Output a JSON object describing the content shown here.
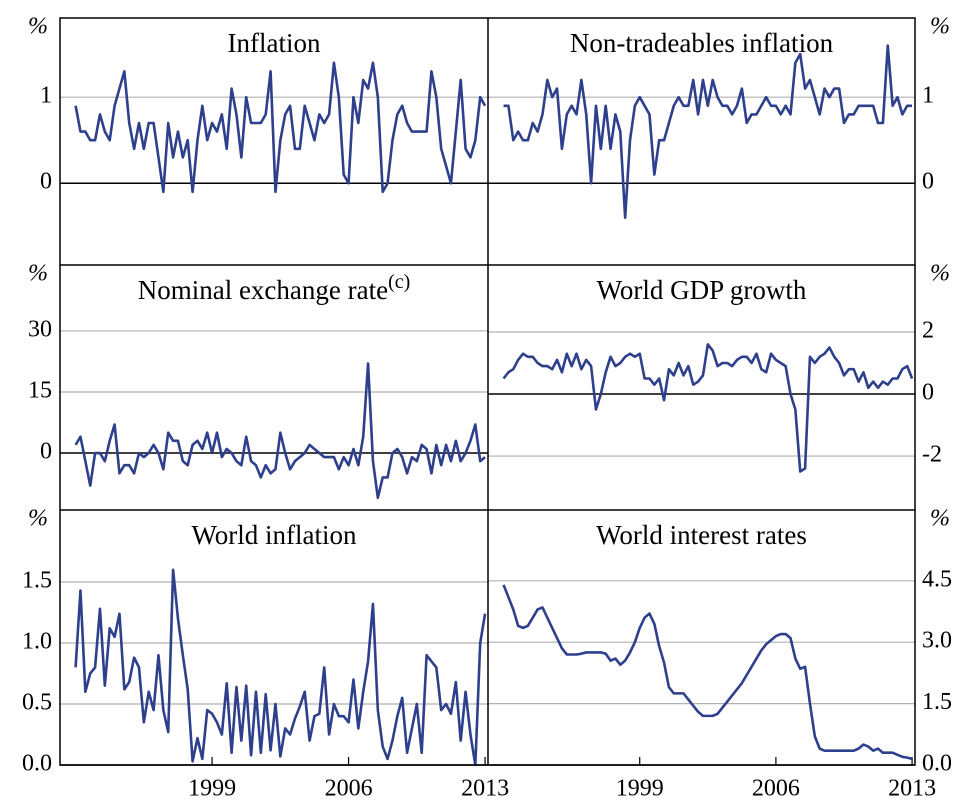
{
  "chart_data": [
    {
      "type": "line",
      "title": "Inflation",
      "ylabel": "%",
      "color": "#2e3f8c",
      "grid": true,
      "x": [
        1992,
        1992.25,
        1992.5,
        1992.75,
        1993,
        1993.25,
        1993.5,
        1993.75,
        1994,
        1994.25,
        1994.5,
        1994.75,
        1995,
        1995.25,
        1995.5,
        1995.75,
        1996,
        1996.25,
        1996.5,
        1996.75,
        1997,
        1997.25,
        1997.5,
        1997.75,
        1998,
        1998.25,
        1998.5,
        1998.75,
        1999,
        1999.25,
        1999.5,
        1999.75,
        2000,
        2000.25,
        2000.5,
        2000.75,
        2001,
        2001.25,
        2001.5,
        2001.75,
        2002,
        2002.25,
        2002.5,
        2002.75,
        2003,
        2003.25,
        2003.5,
        2003.75,
        2004,
        2004.25,
        2004.5,
        2004.75,
        2005,
        2005.25,
        2005.5,
        2005.75,
        2006,
        2006.25,
        2006.5,
        2006.75,
        2007,
        2007.25,
        2007.5,
        2007.75,
        2008,
        2008.25,
        2008.5,
        2008.75,
        2009,
        2009.25,
        2009.5,
        2009.75,
        2010,
        2010.25,
        2010.5,
        2010.75,
        2011,
        2011.25,
        2011.5,
        2011.75,
        2012,
        2012.25,
        2012.5,
        2012.75,
        2013
      ],
      "values": [
        0.9,
        0.6,
        0.6,
        0.5,
        0.5,
        0.8,
        0.6,
        0.5,
        0.9,
        1.1,
        1.3,
        0.7,
        0.4,
        0.7,
        0.4,
        0.7,
        0.7,
        0.3,
        -0.1,
        0.7,
        0.3,
        0.6,
        0.3,
        0.5,
        -0.1,
        0.5,
        0.9,
        0.5,
        0.7,
        0.6,
        0.8,
        0.4,
        1.1,
        0.8,
        0.3,
        1.0,
        0.7,
        0.7,
        0.7,
        0.8,
        1.3,
        -0.1,
        0.5,
        0.8,
        0.9,
        0.4,
        0.4,
        0.9,
        0.7,
        0.5,
        0.8,
        0.7,
        0.8,
        1.4,
        1.0,
        0.1,
        0.0,
        1.0,
        0.7,
        1.2,
        1.1,
        1.4,
        1.0,
        -0.1,
        0.0,
        0.5,
        0.8,
        0.9,
        0.7,
        0.6,
        0.6,
        0.6,
        0.6,
        1.3,
        1.0,
        0.4,
        0.2,
        0.0,
        0.6,
        1.2,
        0.4,
        0.3,
        0.5,
        1.0,
        0.9
      ],
      "xlim": [
        1991.2,
        2013.15
      ],
      "ylim": [
        -0.95,
        1.92
      ],
      "yticks": [
        0,
        1
      ]
    },
    {
      "type": "line",
      "title": "Non-tradeables inflation",
      "ylabel": "%",
      "color": "#2e3f8c",
      "grid": true,
      "x": [
        1992,
        1992.25,
        1992.5,
        1992.75,
        1993,
        1993.25,
        1993.5,
        1993.75,
        1994,
        1994.25,
        1994.5,
        1994.75,
        1995,
        1995.25,
        1995.5,
        1995.75,
        1996,
        1996.25,
        1996.5,
        1996.75,
        1997,
        1997.25,
        1997.5,
        1997.75,
        1998,
        1998.25,
        1998.5,
        1998.75,
        1999,
        1999.25,
        1999.5,
        1999.75,
        2000,
        2000.25,
        2000.5,
        2000.75,
        2001,
        2001.25,
        2001.5,
        2001.75,
        2002,
        2002.25,
        2002.5,
        2002.75,
        2003,
        2003.25,
        2003.5,
        2003.75,
        2004,
        2004.25,
        2004.5,
        2004.75,
        2005,
        2005.25,
        2005.5,
        2005.75,
        2006,
        2006.25,
        2006.5,
        2006.75,
        2007,
        2007.25,
        2007.5,
        2007.75,
        2008,
        2008.25,
        2008.5,
        2008.75,
        2009,
        2009.25,
        2009.5,
        2009.75,
        2010,
        2010.25,
        2010.5,
        2010.75,
        2011,
        2011.25,
        2011.5,
        2011.75,
        2012,
        2012.25,
        2012.5,
        2012.75,
        2013
      ],
      "values": [
        0.9,
        0.9,
        0.5,
        0.6,
        0.5,
        0.5,
        0.7,
        0.6,
        0.8,
        1.2,
        1.0,
        1.1,
        0.4,
        0.8,
        0.9,
        0.8,
        1.2,
        0.8,
        0.0,
        0.9,
        0.4,
        0.9,
        0.4,
        0.8,
        0.6,
        -0.4,
        0.5,
        0.9,
        1.0,
        0.9,
        0.8,
        0.1,
        0.5,
        0.5,
        0.7,
        0.9,
        1.0,
        0.9,
        0.9,
        1.2,
        0.8,
        1.2,
        0.9,
        1.2,
        1.0,
        0.9,
        0.9,
        0.8,
        0.9,
        1.1,
        0.7,
        0.8,
        0.8,
        0.9,
        1.0,
        0.9,
        0.9,
        0.8,
        0.9,
        0.8,
        1.4,
        1.5,
        1.1,
        1.2,
        1.0,
        0.8,
        1.1,
        1.0,
        1.1,
        1.1,
        0.7,
        0.8,
        0.8,
        0.9,
        0.9,
        0.9,
        0.9,
        0.7,
        0.7,
        1.6,
        0.9,
        1.0,
        0.8,
        0.9,
        0.9
      ],
      "xlim": [
        1991.2,
        2013.15
      ],
      "ylim": [
        -0.95,
        1.92
      ],
      "yticks": [
        0,
        1
      ]
    },
    {
      "type": "line",
      "title": "Nominal exchange rate",
      "title_superscript": "(c)",
      "ylabel": "%",
      "color": "#2e3f8c",
      "grid": true,
      "x": [
        1992,
        1992.25,
        1992.5,
        1992.75,
        1993,
        1993.25,
        1993.5,
        1993.75,
        1994,
        1994.25,
        1994.5,
        1994.75,
        1995,
        1995.25,
        1995.5,
        1995.75,
        1996,
        1996.25,
        1996.5,
        1996.75,
        1997,
        1997.25,
        1997.5,
        1997.75,
        1998,
        1998.25,
        1998.5,
        1998.75,
        1999,
        1999.25,
        1999.5,
        1999.75,
        2000,
        2000.25,
        2000.5,
        2000.75,
        2001,
        2001.25,
        2001.5,
        2001.75,
        2002,
        2002.25,
        2002.5,
        2002.75,
        2003,
        2003.25,
        2003.5,
        2003.75,
        2004,
        2004.25,
        2004.5,
        2004.75,
        2005,
        2005.25,
        2005.5,
        2005.75,
        2006,
        2006.25,
        2006.5,
        2006.75,
        2007,
        2007.25,
        2007.5,
        2007.75,
        2008,
        2008.25,
        2008.5,
        2008.75,
        2009,
        2009.25,
        2009.5,
        2009.75,
        2010,
        2010.25,
        2010.5,
        2010.75,
        2011,
        2011.25,
        2011.5,
        2011.75,
        2012,
        2012.25,
        2012.5,
        2012.75,
        2013
      ],
      "values": [
        2,
        4,
        -2,
        -8,
        0,
        0,
        -2,
        3,
        7,
        -5,
        -3,
        -3,
        -5,
        0,
        -1,
        0,
        2,
        0,
        -4,
        5,
        3,
        3,
        -2,
        -3,
        2,
        3,
        1,
        5,
        0,
        5,
        -1,
        1,
        0,
        -2,
        -3,
        4,
        -2,
        -3,
        -6,
        -3,
        -5,
        -4,
        5,
        0,
        -4,
        -2,
        -1,
        0,
        2,
        1,
        0,
        -1,
        -1,
        -1,
        -4,
        -1,
        -3,
        1,
        -3,
        4,
        22,
        -2,
        -11,
        -6,
        -6,
        0,
        1,
        -1,
        -5,
        -1,
        -2,
        2,
        1,
        -5,
        2,
        -3,
        2,
        -2,
        3,
        -2,
        0,
        3,
        7,
        -2,
        -1
      ],
      "xlim": [
        1991.2,
        2013.15
      ],
      "ylim": [
        -14,
        46.2
      ],
      "yticks": [
        0,
        15,
        30
      ]
    },
    {
      "type": "line",
      "title": "World GDP growth",
      "ylabel": "%",
      "color": "#2e3f8c",
      "grid": true,
      "x": [
        1992,
        1992.25,
        1992.5,
        1992.75,
        1993,
        1993.25,
        1993.5,
        1993.75,
        1994,
        1994.25,
        1994.5,
        1994.75,
        1995,
        1995.25,
        1995.5,
        1995.75,
        1996,
        1996.25,
        1996.5,
        1996.75,
        1997,
        1997.25,
        1997.5,
        1997.75,
        1998,
        1998.25,
        1998.5,
        1998.75,
        1999,
        1999.25,
        1999.5,
        1999.75,
        2000,
        2000.25,
        2000.5,
        2000.75,
        2001,
        2001.25,
        2001.5,
        2001.75,
        2002,
        2002.25,
        2002.5,
        2002.75,
        2003,
        2003.25,
        2003.5,
        2003.75,
        2004,
        2004.25,
        2004.5,
        2004.75,
        2005,
        2005.25,
        2005.5,
        2005.75,
        2006,
        2006.25,
        2006.5,
        2006.75,
        2007,
        2007.25,
        2007.5,
        2007.75,
        2008,
        2008.25,
        2008.5,
        2008.75,
        2009,
        2009.25,
        2009.5,
        2009.75,
        2010,
        2010.25,
        2010.5,
        2010.75,
        2011,
        2011.25,
        2011.5,
        2011.75,
        2012,
        2012.25,
        2012.5,
        2012.75,
        2013
      ],
      "values": [
        0.5,
        0.7,
        0.8,
        1.1,
        1.3,
        1.2,
        1.2,
        1.0,
        0.9,
        0.9,
        0.8,
        1.1,
        0.7,
        1.3,
        0.9,
        1.3,
        0.8,
        1.1,
        0.9,
        -0.5,
        0.0,
        0.7,
        1.2,
        0.9,
        1.0,
        1.2,
        1.3,
        1.2,
        1.3,
        0.5,
        0.5,
        0.3,
        0.5,
        -0.2,
        0.8,
        0.6,
        1.0,
        0.6,
        0.9,
        0.3,
        0.4,
        0.6,
        1.6,
        1.4,
        0.9,
        1.0,
        1.0,
        0.9,
        1.1,
        1.2,
        1.2,
        1.0,
        1.3,
        0.8,
        0.7,
        1.3,
        1.1,
        1.0,
        0.9,
        0.0,
        -0.5,
        -2.5,
        -2.4,
        1.2,
        1.0,
        1.2,
        1.3,
        1.5,
        1.2,
        1.0,
        0.6,
        0.8,
        0.8,
        0.4,
        0.7,
        0.2,
        0.4,
        0.2,
        0.4,
        0.3,
        0.5,
        0.5,
        0.8,
        0.9,
        0.5
      ],
      "xlim": [
        1991.2,
        2013.15
      ],
      "ylim": [
        -3.74,
        4.16
      ],
      "yticks": [
        -2,
        0,
        2
      ]
    },
    {
      "type": "line",
      "title": "World inflation",
      "ylabel": "%",
      "color": "#2e3f8c",
      "grid": true,
      "x": [
        1992,
        1992.25,
        1992.5,
        1992.75,
        1993,
        1993.25,
        1993.5,
        1993.75,
        1994,
        1994.25,
        1994.5,
        1994.75,
        1995,
        1995.25,
        1995.5,
        1995.75,
        1996,
        1996.25,
        1996.5,
        1996.75,
        1997,
        1997.25,
        1997.5,
        1997.75,
        1998,
        1998.25,
        1998.5,
        1998.75,
        1999,
        1999.25,
        1999.5,
        1999.75,
        2000,
        2000.25,
        2000.5,
        2000.75,
        2001,
        2001.25,
        2001.5,
        2001.75,
        2002,
        2002.25,
        2002.5,
        2002.75,
        2003,
        2003.25,
        2003.5,
        2003.75,
        2004,
        2004.25,
        2004.5,
        2004.75,
        2005,
        2005.25,
        2005.5,
        2005.75,
        2006,
        2006.25,
        2006.5,
        2006.75,
        2007,
        2007.25,
        2007.5,
        2007.75,
        2008,
        2008.25,
        2008.5,
        2008.75,
        2009,
        2009.25,
        2009.5,
        2009.75,
        2010,
        2010.25,
        2010.5,
        2010.75,
        2011,
        2011.25,
        2011.5,
        2011.75,
        2012,
        2012.25,
        2012.5,
        2012.75,
        2013
      ],
      "values": [
        0.8,
        1.43,
        0.6,
        0.75,
        0.8,
        1.28,
        0.65,
        1.12,
        1.05,
        1.24,
        0.62,
        0.68,
        0.88,
        0.8,
        0.35,
        0.6,
        0.45,
        0.9,
        0.45,
        0.27,
        1.6,
        1.2,
        0.9,
        0.62,
        0.03,
        0.22,
        0.05,
        0.45,
        0.42,
        0.35,
        0.25,
        0.67,
        0.1,
        0.64,
        0.2,
        0.65,
        0.08,
        0.6,
        0.1,
        0.58,
        0.12,
        0.5,
        0.07,
        0.3,
        0.25,
        0.38,
        0.48,
        0.6,
        0.2,
        0.4,
        0.42,
        0.8,
        0.25,
        0.5,
        0.4,
        0.4,
        0.35,
        0.7,
        0.3,
        0.6,
        0.85,
        1.32,
        0.45,
        0.15,
        0.05,
        0.2,
        0.4,
        0.55,
        0.1,
        0.3,
        0.5,
        0.1,
        0.9,
        0.85,
        0.8,
        0.45,
        0.5,
        0.42,
        0.68,
        0.2,
        0.6,
        0.25,
        0.0,
        1.0,
        1.24
      ],
      "xlim": [
        1991.2,
        2013.15
      ],
      "xticks": [
        1999,
        2006,
        2013
      ],
      "ylim": [
        0,
        2.09
      ],
      "yticks": [
        {
          "value": 0,
          "label": "0.0"
        },
        0.5,
        {
          "value": 1,
          "label": "1.0"
        },
        1.5
      ]
    },
    {
      "type": "line",
      "title": "World interest rates",
      "ylabel": "%",
      "color": "#2e3f8c",
      "grid": true,
      "x": [
        1992,
        1992.25,
        1992.5,
        1992.75,
        1993,
        1993.25,
        1993.5,
        1993.75,
        1994,
        1994.25,
        1994.5,
        1994.75,
        1995,
        1995.25,
        1995.5,
        1995.75,
        1996,
        1996.25,
        1996.5,
        1996.75,
        1997,
        1997.25,
        1997.5,
        1997.75,
        1998,
        1998.25,
        1998.5,
        1998.75,
        1999,
        1999.25,
        1999.5,
        1999.75,
        2000,
        2000.25,
        2000.5,
        2000.75,
        2001,
        2001.25,
        2001.5,
        2001.75,
        2002,
        2002.25,
        2002.5,
        2002.75,
        2003,
        2003.25,
        2003.5,
        2003.75,
        2004,
        2004.25,
        2004.5,
        2004.75,
        2005,
        2005.25,
        2005.5,
        2005.75,
        2006,
        2006.25,
        2006.5,
        2006.75,
        2007,
        2007.25,
        2007.5,
        2007.75,
        2008,
        2008.25,
        2008.5,
        2008.75,
        2009,
        2009.25,
        2009.5,
        2009.75,
        2010,
        2010.25,
        2010.5,
        2010.75,
        2011,
        2011.25,
        2011.5,
        2011.75,
        2012,
        2012.25,
        2012.5,
        2012.75,
        2013
      ],
      "values": [
        4.4,
        4.1,
        3.8,
        3.4,
        3.35,
        3.4,
        3.6,
        3.8,
        3.85,
        3.6,
        3.35,
        3.1,
        2.85,
        2.7,
        2.7,
        2.7,
        2.72,
        2.75,
        2.75,
        2.75,
        2.75,
        2.72,
        2.55,
        2.6,
        2.45,
        2.55,
        2.75,
        3.0,
        3.35,
        3.6,
        3.7,
        3.45,
        2.9,
        2.5,
        1.9,
        1.75,
        1.75,
        1.75,
        1.6,
        1.45,
        1.3,
        1.2,
        1.2,
        1.2,
        1.25,
        1.4,
        1.55,
        1.7,
        1.85,
        2.0,
        2.2,
        2.4,
        2.6,
        2.8,
        2.95,
        3.05,
        3.15,
        3.2,
        3.2,
        3.1,
        2.6,
        2.35,
        2.4,
        1.5,
        0.7,
        0.4,
        0.35,
        0.35,
        0.35,
        0.35,
        0.35,
        0.35,
        0.35,
        0.4,
        0.5,
        0.45,
        0.35,
        0.4,
        0.3,
        0.3,
        0.3,
        0.25,
        0.2,
        0.18,
        0.15
      ],
      "xlim": [
        1991.2,
        2013.15
      ],
      "xticks": [
        1999,
        2006,
        2013
      ],
      "ylim": [
        0,
        6.23
      ],
      "yticks": [
        {
          "value": 0,
          "label": "0.0"
        },
        1.5,
        {
          "value": 3,
          "label": "3.0"
        },
        4.5
      ]
    }
  ]
}
